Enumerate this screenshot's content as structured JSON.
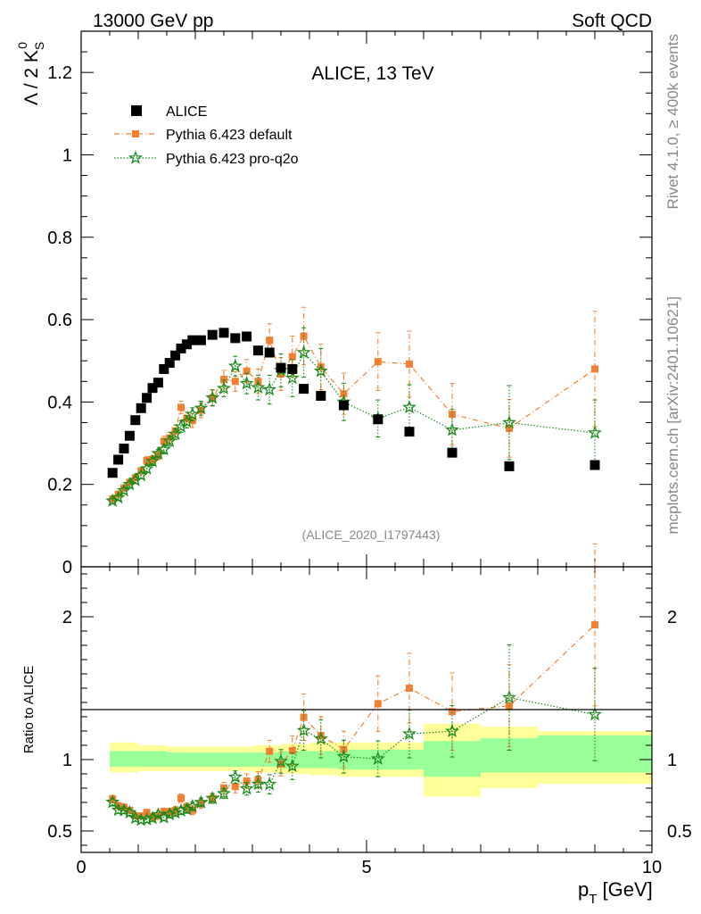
{
  "header": {
    "left": "13000 GeV pp",
    "right": "Soft QCD"
  },
  "side": {
    "rivet": "Rivet 4.1.0, ≥ 400k events",
    "mcplots": "mcplots.cern.ch [arXiv:2401.10621]"
  },
  "chart_data": {
    "type": "scatter",
    "title": "ALICE, 13 TeV",
    "analysis_label": "(ALICE_2020_I1797443)",
    "xlabel": "p_T [GeV]",
    "xlim": [
      0,
      10
    ],
    "x_ticks": [
      0,
      5,
      10
    ],
    "main": {
      "ylabel": "Λ / 2 K⁰S",
      "ylim": [
        0,
        1.3
      ],
      "y_ticks": [
        0,
        0.2,
        0.4,
        0.6,
        0.8,
        1,
        1.2
      ],
      "y_tick_labels": [
        "0",
        "0.2",
        "0.4",
        "0.6",
        "0.8",
        "1",
        "1.2"
      ]
    },
    "ratio": {
      "ylabel": "Ratio to ALICE",
      "ylim": [
        0.35,
        2.35
      ],
      "y_ticks": [
        0.5,
        1,
        2
      ],
      "y_tick_labels": [
        "0.5",
        "1",
        "2"
      ],
      "bands": {
        "x_edges": [
          0.5,
          1,
          1.5,
          2,
          2.5,
          3,
          3.5,
          4,
          4.5,
          5,
          6,
          7,
          8,
          10
        ],
        "inner_lo": [
          0.95,
          0.95,
          0.95,
          0.95,
          0.95,
          0.95,
          0.94,
          0.94,
          0.93,
          0.93,
          0.88,
          0.91,
          0.91
        ],
        "inner_hi": [
          1.06,
          1.06,
          1.05,
          1.05,
          1.05,
          1.05,
          1.06,
          1.06,
          1.07,
          1.07,
          1.13,
          1.15,
          1.17
        ],
        "outer_lo": [
          0.91,
          0.92,
          0.92,
          0.92,
          0.92,
          0.91,
          0.9,
          0.89,
          0.88,
          0.88,
          0.74,
          0.8,
          0.83
        ],
        "outer_hi": [
          1.12,
          1.1,
          1.09,
          1.09,
          1.09,
          1.1,
          1.11,
          1.12,
          1.12,
          1.12,
          1.25,
          1.23,
          1.2
        ]
      }
    },
    "series": [
      {
        "name": "ALICE",
        "color": "#000000",
        "marker": "square",
        "points": [
          [
            0.55,
            0.228
          ],
          [
            0.65,
            0.26
          ],
          [
            0.75,
            0.287
          ],
          [
            0.85,
            0.318
          ],
          [
            0.95,
            0.356
          ],
          [
            1.05,
            0.385
          ],
          [
            1.15,
            0.41
          ],
          [
            1.25,
            0.434
          ],
          [
            1.35,
            0.447
          ],
          [
            1.45,
            0.48
          ],
          [
            1.55,
            0.495
          ],
          [
            1.65,
            0.513
          ],
          [
            1.75,
            0.53
          ],
          [
            1.85,
            0.54
          ],
          [
            1.95,
            0.55
          ],
          [
            2.1,
            0.55
          ],
          [
            2.3,
            0.563
          ],
          [
            2.5,
            0.568
          ],
          [
            2.7,
            0.555
          ],
          [
            2.9,
            0.559
          ],
          [
            3.1,
            0.525
          ],
          [
            3.3,
            0.52
          ],
          [
            3.5,
            0.483
          ],
          [
            3.7,
            0.48
          ],
          [
            3.9,
            0.432
          ],
          [
            4.2,
            0.415
          ],
          [
            4.6,
            0.392
          ],
          [
            5.2,
            0.358
          ],
          [
            5.75,
            0.328
          ],
          [
            6.5,
            0.277
          ],
          [
            7.5,
            0.244
          ],
          [
            9.0,
            0.247
          ]
        ]
      },
      {
        "name": "Pythia 6.423 default",
        "color": "#f28030",
        "marker": "square-open-fill",
        "points": [
          [
            0.55,
            0.165,
            0.006
          ],
          [
            0.65,
            0.176,
            0.006
          ],
          [
            0.75,
            0.191,
            0.007
          ],
          [
            0.85,
            0.205,
            0.007
          ],
          [
            0.95,
            0.216,
            0.008
          ],
          [
            1.05,
            0.233,
            0.008
          ],
          [
            1.15,
            0.258,
            0.009
          ],
          [
            1.25,
            0.26,
            0.01
          ],
          [
            1.35,
            0.27,
            0.01
          ],
          [
            1.45,
            0.305,
            0.012
          ],
          [
            1.55,
            0.313,
            0.013
          ],
          [
            1.65,
            0.33,
            0.014
          ],
          [
            1.75,
            0.387,
            0.015
          ],
          [
            1.85,
            0.36,
            0.016
          ],
          [
            1.95,
            0.355,
            0.017
          ],
          [
            2.1,
            0.38,
            0.018
          ],
          [
            2.3,
            0.41,
            0.02
          ],
          [
            2.5,
            0.455,
            0.022
          ],
          [
            2.7,
            0.45,
            0.024
          ],
          [
            2.9,
            0.475,
            0.028
          ],
          [
            3.1,
            0.45,
            0.03
          ],
          [
            3.3,
            0.55,
            0.04
          ],
          [
            3.5,
            0.468,
            0.04
          ],
          [
            3.7,
            0.51,
            0.05
          ],
          [
            3.9,
            0.56,
            0.07
          ],
          [
            4.2,
            0.485,
            0.055
          ],
          [
            4.6,
            0.42,
            0.05
          ],
          [
            5.2,
            0.498,
            0.07
          ],
          [
            5.75,
            0.492,
            0.08
          ],
          [
            6.5,
            0.37,
            0.075
          ],
          [
            7.5,
            0.336,
            0.07
          ],
          [
            9.0,
            0.48,
            0.14
          ]
        ]
      },
      {
        "name": "Pythia 6.423 pro-q2o",
        "color": "#1a8a1a",
        "marker": "star-open",
        "points": [
          [
            0.55,
            0.16,
            0.006
          ],
          [
            0.65,
            0.168,
            0.006
          ],
          [
            0.75,
            0.185,
            0.007
          ],
          [
            0.85,
            0.2,
            0.007
          ],
          [
            0.95,
            0.21,
            0.008
          ],
          [
            1.05,
            0.222,
            0.008
          ],
          [
            1.15,
            0.238,
            0.009
          ],
          [
            1.25,
            0.256,
            0.01
          ],
          [
            1.35,
            0.275,
            0.01
          ],
          [
            1.45,
            0.285,
            0.011
          ],
          [
            1.55,
            0.305,
            0.012
          ],
          [
            1.65,
            0.322,
            0.013
          ],
          [
            1.75,
            0.34,
            0.014
          ],
          [
            1.85,
            0.352,
            0.015
          ],
          [
            1.95,
            0.37,
            0.016
          ],
          [
            2.1,
            0.385,
            0.017
          ],
          [
            2.3,
            0.41,
            0.019
          ],
          [
            2.5,
            0.433,
            0.02
          ],
          [
            2.7,
            0.487,
            0.024
          ],
          [
            2.9,
            0.445,
            0.025
          ],
          [
            3.1,
            0.435,
            0.03
          ],
          [
            3.3,
            0.43,
            0.035
          ],
          [
            3.5,
            0.477,
            0.04
          ],
          [
            3.7,
            0.458,
            0.045
          ],
          [
            3.9,
            0.52,
            0.06
          ],
          [
            4.2,
            0.475,
            0.055
          ],
          [
            4.6,
            0.4,
            0.045
          ],
          [
            5.2,
            0.36,
            0.045
          ],
          [
            5.75,
            0.387,
            0.055
          ],
          [
            6.5,
            0.332,
            0.05
          ],
          [
            7.5,
            0.35,
            0.09
          ],
          [
            9.0,
            0.325,
            0.08
          ]
        ]
      }
    ]
  }
}
